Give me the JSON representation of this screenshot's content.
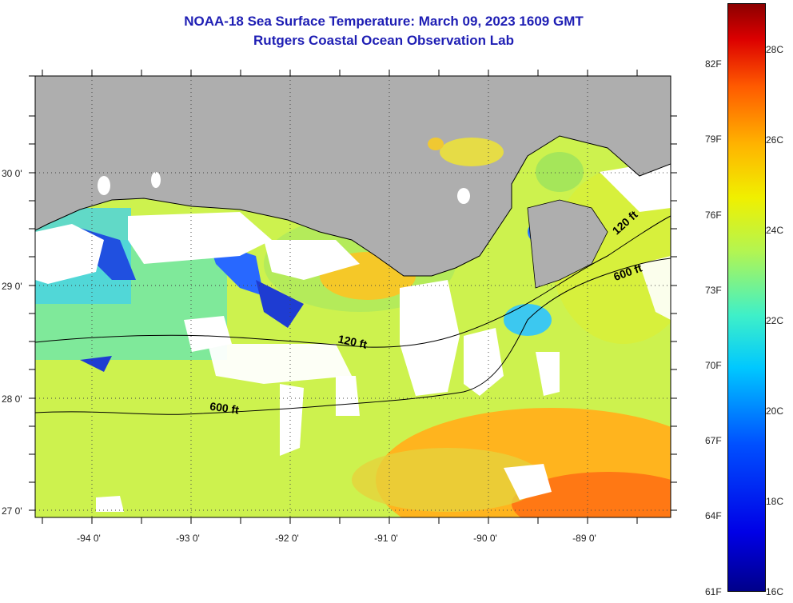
{
  "title": {
    "line1": "NOAA-18 Sea Surface Temperature:  March 09, 2023 1609 GMT",
    "line2": "Rutgers Coastal Ocean Observation Lab"
  },
  "map": {
    "lat_labels": [
      "30 0'",
      "29 0'",
      "28 0'",
      "27 0'"
    ],
    "lon_labels": [
      "-94 0'",
      "-93 0'",
      "-92 0'",
      "-91 0'",
      "-90 0'",
      "-89 0'"
    ],
    "contours": [
      {
        "label": "120 ft"
      },
      {
        "label": "120 ft"
      },
      {
        "label": "600 ft"
      },
      {
        "label": "600 ft"
      }
    ],
    "colors": {
      "land": "#aeaeae",
      "cloud": "#ffffff",
      "contour": "#000000"
    }
  },
  "colorbar": {
    "fahrenheit": [
      "82F",
      "79F",
      "76F",
      "73F",
      "70F",
      "67F",
      "64F",
      "61F"
    ],
    "celsius": [
      "28C",
      "26C",
      "24C",
      "22C",
      "20C",
      "18C",
      "16C"
    ],
    "range_c": [
      16,
      29
    ]
  }
}
